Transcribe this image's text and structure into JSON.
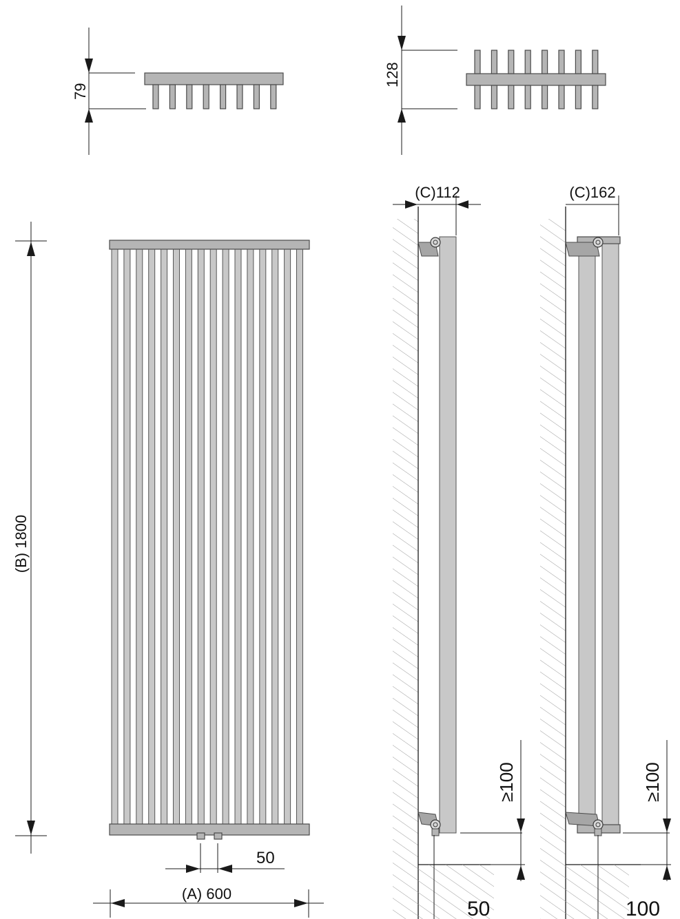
{
  "drawing": {
    "top_view_left": {
      "depth_label": "79"
    },
    "top_view_right": {
      "depth_label": "128"
    },
    "front_view": {
      "height_label": "(B) 1800",
      "width_label": "(A) 600",
      "connection_spacing_label": "50"
    },
    "side_view_single": {
      "projection_label": "(C)112",
      "floor_clearance_label": "≥100",
      "wall_offset_label": "50"
    },
    "side_view_double": {
      "projection_label": "(C)162",
      "floor_clearance_label": "≥100",
      "wall_offset_label": "100"
    }
  },
  "colors": {
    "tube_fill": "#b5b5b5",
    "tube_stroke": "#4a4a4a",
    "hatch": "#9a9a9a",
    "dimension_line": "#1a1a1a"
  }
}
